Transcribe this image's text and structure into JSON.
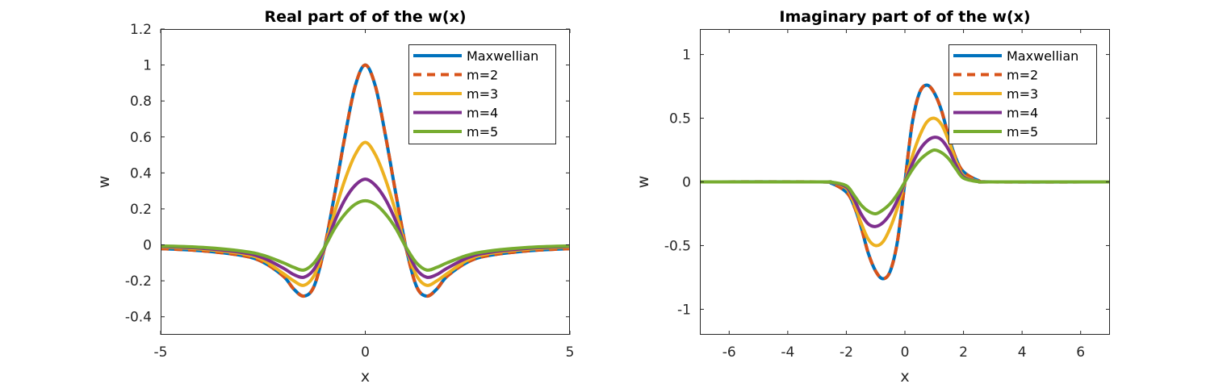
{
  "chart_data": [
    {
      "type": "line",
      "title": "Real part of of the w(x)",
      "xlabel": "x",
      "ylabel": "w",
      "xlim": [
        -5,
        5
      ],
      "ylim": [
        -0.5,
        1.2
      ],
      "xticks": [
        -5,
        0,
        5
      ],
      "yticks": [
        -0.4,
        -0.2,
        0,
        0.2,
        0.4,
        0.6,
        0.8,
        1,
        1.2
      ],
      "xtick_labels": [
        "-5",
        "0",
        "5"
      ],
      "ytick_labels": [
        "-0.4",
        "-0.2",
        "0",
        "0.2",
        "0.4",
        "0.6",
        "0.8",
        "1",
        "1.2"
      ],
      "grid": false,
      "legend_position": "top-right",
      "x": [
        -5,
        -4,
        -3,
        -2.5,
        -2,
        -1.75,
        -1.5,
        -1.25,
        -1,
        -0.75,
        -0.5,
        -0.25,
        0,
        0.25,
        0.5,
        0.75,
        1,
        1.25,
        1.5,
        1.75,
        2,
        2.5,
        3,
        4,
        5
      ],
      "series": [
        {
          "name": "Maxwellian",
          "color": "#0072BD",
          "dash": "solid",
          "values": [
            -0.021,
            -0.033,
            -0.06,
            -0.096,
            -0.175,
            -0.245,
            -0.285,
            -0.23,
            -0.02,
            0.28,
            0.6,
            0.88,
            1.0,
            0.88,
            0.6,
            0.28,
            -0.02,
            -0.23,
            -0.285,
            -0.245,
            -0.175,
            -0.096,
            -0.06,
            -0.033,
            -0.021
          ]
        },
        {
          "name": "m=2",
          "color": "#D95319",
          "dash": "dashed",
          "values": [
            -0.021,
            -0.033,
            -0.06,
            -0.096,
            -0.175,
            -0.245,
            -0.285,
            -0.23,
            -0.02,
            0.28,
            0.6,
            0.88,
            1.0,
            0.88,
            0.6,
            0.28,
            -0.02,
            -0.23,
            -0.285,
            -0.245,
            -0.175,
            -0.096,
            -0.06,
            -0.033,
            -0.021
          ]
        },
        {
          "name": "m=3",
          "color": "#EDB120",
          "dash": "solid",
          "values": [
            -0.012,
            -0.024,
            -0.05,
            -0.085,
            -0.16,
            -0.2,
            -0.225,
            -0.17,
            -0.02,
            0.18,
            0.36,
            0.5,
            0.57,
            0.5,
            0.36,
            0.18,
            -0.02,
            -0.17,
            -0.225,
            -0.2,
            -0.16,
            -0.085,
            -0.05,
            -0.024,
            -0.012
          ]
        },
        {
          "name": "m=4",
          "color": "#7E2F8E",
          "dash": "solid",
          "values": [
            -0.009,
            -0.019,
            -0.043,
            -0.072,
            -0.13,
            -0.165,
            -0.18,
            -0.135,
            -0.02,
            0.13,
            0.25,
            0.33,
            0.365,
            0.33,
            0.25,
            0.13,
            -0.02,
            -0.135,
            -0.18,
            -0.165,
            -0.13,
            -0.072,
            -0.043,
            -0.019,
            -0.009
          ]
        },
        {
          "name": "m=5",
          "color": "#77AC30",
          "dash": "solid",
          "values": [
            -0.006,
            -0.014,
            -0.035,
            -0.058,
            -0.1,
            -0.125,
            -0.14,
            -0.1,
            -0.015,
            0.09,
            0.17,
            0.225,
            0.245,
            0.225,
            0.17,
            0.09,
            -0.015,
            -0.1,
            -0.14,
            -0.125,
            -0.1,
            -0.058,
            -0.035,
            -0.014,
            -0.006
          ]
        }
      ]
    },
    {
      "type": "line",
      "title": "Imaginary part of of the w(x)",
      "xlabel": "x",
      "ylabel": "w",
      "xlim": [
        -7,
        7
      ],
      "ylim": [
        -1.2,
        1.2
      ],
      "xticks": [
        -6,
        -4,
        -2,
        0,
        2,
        4,
        6
      ],
      "yticks": [
        -1,
        -0.5,
        0,
        0.5,
        1
      ],
      "xtick_labels": [
        "-6",
        "-4",
        "-2",
        "0",
        "2",
        "4",
        "6"
      ],
      "ytick_labels": [
        "-1",
        "-0.5",
        "0",
        "0.5",
        "1"
      ],
      "grid": false,
      "legend_position": "top-right",
      "x": [
        -7,
        -3,
        -2.5,
        -2,
        -1.75,
        -1.5,
        -1.25,
        -1,
        -0.75,
        -0.5,
        -0.25,
        0,
        0.25,
        0.5,
        0.75,
        1,
        1.25,
        1.5,
        1.75,
        2,
        2.5,
        3,
        7
      ],
      "series": [
        {
          "name": "Maxwellian",
          "color": "#0072BD",
          "dash": "solid",
          "values": [
            0,
            0,
            -0.012,
            -0.08,
            -0.18,
            -0.35,
            -0.56,
            -0.7,
            -0.76,
            -0.7,
            -0.46,
            0,
            0.46,
            0.7,
            0.76,
            0.7,
            0.56,
            0.35,
            0.18,
            0.08,
            0.012,
            0,
            0
          ]
        },
        {
          "name": "m=2",
          "color": "#D95319",
          "dash": "dashed",
          "values": [
            0,
            0,
            -0.012,
            -0.08,
            -0.18,
            -0.35,
            -0.56,
            -0.7,
            -0.76,
            -0.7,
            -0.46,
            0,
            0.46,
            0.7,
            0.76,
            0.7,
            0.56,
            0.35,
            0.18,
            0.08,
            0.012,
            0,
            0
          ]
        },
        {
          "name": "m=3",
          "color": "#EDB120",
          "dash": "solid",
          "values": [
            0,
            0,
            -0.005,
            -0.05,
            -0.16,
            -0.32,
            -0.45,
            -0.5,
            -0.47,
            -0.36,
            -0.2,
            0,
            0.2,
            0.36,
            0.47,
            0.5,
            0.45,
            0.32,
            0.16,
            0.05,
            0.005,
            0,
            0
          ]
        },
        {
          "name": "m=4",
          "color": "#7E2F8E",
          "dash": "solid",
          "values": [
            0,
            0,
            -0.003,
            -0.04,
            -0.13,
            -0.25,
            -0.33,
            -0.35,
            -0.32,
            -0.25,
            -0.14,
            0,
            0.14,
            0.25,
            0.32,
            0.35,
            0.33,
            0.25,
            0.13,
            0.04,
            0.003,
            0,
            0
          ]
        },
        {
          "name": "m=5",
          "color": "#77AC30",
          "dash": "solid",
          "values": [
            0,
            0,
            -0.002,
            -0.03,
            -0.1,
            -0.18,
            -0.23,
            -0.25,
            -0.22,
            -0.17,
            -0.095,
            0,
            0.095,
            0.17,
            0.22,
            0.25,
            0.23,
            0.18,
            0.1,
            0.03,
            0.002,
            0,
            0
          ]
        }
      ]
    }
  ]
}
